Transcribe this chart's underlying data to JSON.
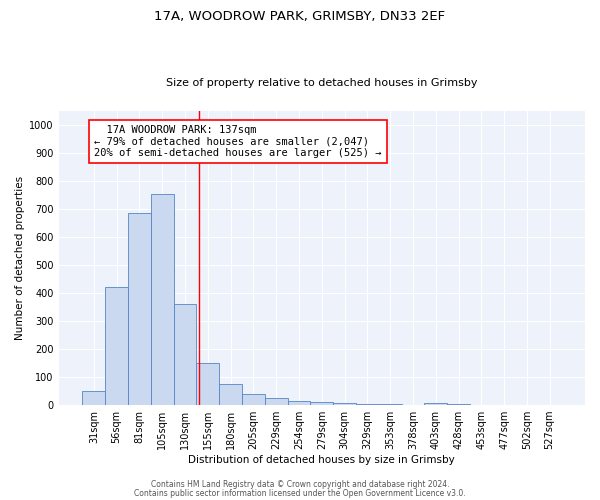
{
  "title1": "17A, WOODROW PARK, GRIMSBY, DN33 2EF",
  "title2": "Size of property relative to detached houses in Grimsby",
  "xlabel": "Distribution of detached houses by size in Grimsby",
  "ylabel": "Number of detached properties",
  "bar_color": "#cad9f0",
  "bar_edge_color": "#5585c5",
  "categories": [
    "31sqm",
    "56sqm",
    "81sqm",
    "105sqm",
    "130sqm",
    "155sqm",
    "180sqm",
    "205sqm",
    "229sqm",
    "254sqm",
    "279sqm",
    "304sqm",
    "329sqm",
    "353sqm",
    "378sqm",
    "403sqm",
    "428sqm",
    "453sqm",
    "477sqm",
    "502sqm",
    "527sqm"
  ],
  "values": [
    50,
    420,
    685,
    755,
    360,
    150,
    75,
    40,
    25,
    15,
    10,
    8,
    5,
    3,
    2,
    8,
    5,
    0,
    0,
    0,
    0
  ],
  "ylim": [
    0,
    1050
  ],
  "yticks": [
    0,
    100,
    200,
    300,
    400,
    500,
    600,
    700,
    800,
    900,
    1000
  ],
  "red_line_x": 4.62,
  "annotation_text": "  17A WOODROW PARK: 137sqm  \n← 79% of detached houses are smaller (2,047)\n20% of semi-detached houses are larger (525) →",
  "footer1": "Contains HM Land Registry data © Crown copyright and database right 2024.",
  "footer2": "Contains public sector information licensed under the Open Government Licence v3.0.",
  "background_color": "#eef2fb",
  "grid_color": "#ffffff",
  "title1_fontsize": 9.5,
  "title2_fontsize": 8.0,
  "ylabel_fontsize": 7.5,
  "xlabel_fontsize": 7.5,
  "footer_fontsize": 5.5,
  "tick_fontsize": 7.0,
  "ann_fontsize": 7.5
}
